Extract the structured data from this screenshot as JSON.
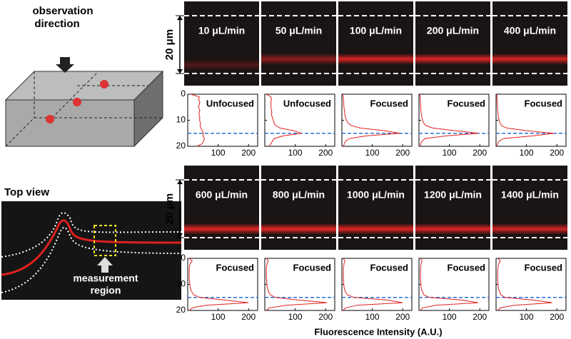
{
  "diagram": {
    "observation_direction": [
      "observation",
      "direction"
    ],
    "top_view": "Top view",
    "measurement_region": [
      "measurement",
      "region"
    ]
  },
  "channel_width_label": "20 μm",
  "x_axis_label": "Fluorescence Intensity (A.U.)",
  "profile_axes": {
    "xlim": [
      0,
      230
    ],
    "xticks": [
      100,
      200
    ],
    "ylim": [
      0,
      20
    ],
    "yticks": [
      0,
      10,
      20
    ],
    "positions": [
      0,
      1,
      2,
      3,
      4,
      5,
      6,
      7,
      8,
      9,
      10,
      11,
      12,
      13,
      14,
      15,
      16,
      17,
      18,
      19,
      20
    ],
    "center_line": 15,
    "center_line_color": "#2a6fd6",
    "profile_color": "#e02020"
  },
  "panels": [
    {
      "flow": "10 μL/min",
      "status": "Unfocused",
      "intensity": [
        10,
        38,
        36,
        40,
        38,
        35,
        40,
        38,
        37,
        40,
        39,
        42,
        41,
        43,
        48,
        52,
        50,
        55,
        52,
        48,
        30
      ]
    },
    {
      "flow": "50 μL/min",
      "status": "Unfocused",
      "intensity": [
        5,
        20,
        22,
        20,
        21,
        20,
        22,
        23,
        22,
        25,
        28,
        30,
        35,
        50,
        95,
        120,
        60,
        30,
        25,
        20,
        15
      ]
    },
    {
      "flow": "100 μL/min",
      "status": "Focused",
      "intensity": [
        2,
        5,
        5,
        6,
        6,
        7,
        8,
        9,
        10,
        12,
        15,
        20,
        30,
        60,
        140,
        190,
        80,
        25,
        12,
        8,
        5
      ]
    },
    {
      "flow": "200 μL/min",
      "status": "Focused",
      "intensity": [
        2,
        4,
        4,
        5,
        5,
        6,
        6,
        7,
        8,
        10,
        12,
        15,
        22,
        45,
        120,
        195,
        90,
        20,
        10,
        6,
        4
      ]
    },
    {
      "flow": "400 μL/min",
      "status": "Focused",
      "intensity": [
        2,
        3,
        3,
        4,
        4,
        5,
        5,
        6,
        7,
        8,
        10,
        13,
        18,
        35,
        100,
        190,
        120,
        25,
        10,
        5,
        3
      ]
    },
    {
      "flow": "600 μL/min",
      "status": "Focused",
      "intensity": [
        5,
        15,
        8,
        6,
        5,
        5,
        5,
        5,
        5,
        6,
        7,
        8,
        10,
        14,
        20,
        40,
        120,
        200,
        60,
        15,
        5
      ]
    },
    {
      "flow": "800 μL/min",
      "status": "Focused",
      "intensity": [
        5,
        12,
        8,
        6,
        5,
        5,
        5,
        5,
        6,
        6,
        7,
        8,
        10,
        13,
        18,
        35,
        110,
        205,
        70,
        15,
        5
      ]
    },
    {
      "flow": "1000 μL/min",
      "status": "Focused",
      "intensity": [
        4,
        10,
        7,
        6,
        5,
        5,
        5,
        5,
        5,
        6,
        6,
        7,
        9,
        12,
        18,
        40,
        150,
        200,
        50,
        12,
        4
      ]
    },
    {
      "flow": "1200 μL/min",
      "status": "Focused",
      "intensity": [
        4,
        10,
        7,
        6,
        5,
        5,
        5,
        5,
        5,
        6,
        6,
        7,
        9,
        12,
        16,
        35,
        140,
        195,
        55,
        12,
        4
      ]
    },
    {
      "flow": "1400 μL/min",
      "status": "Focused",
      "intensity": [
        6,
        14,
        9,
        7,
        6,
        5,
        5,
        5,
        5,
        6,
        6,
        7,
        9,
        12,
        16,
        30,
        120,
        185,
        60,
        14,
        5
      ]
    }
  ]
}
